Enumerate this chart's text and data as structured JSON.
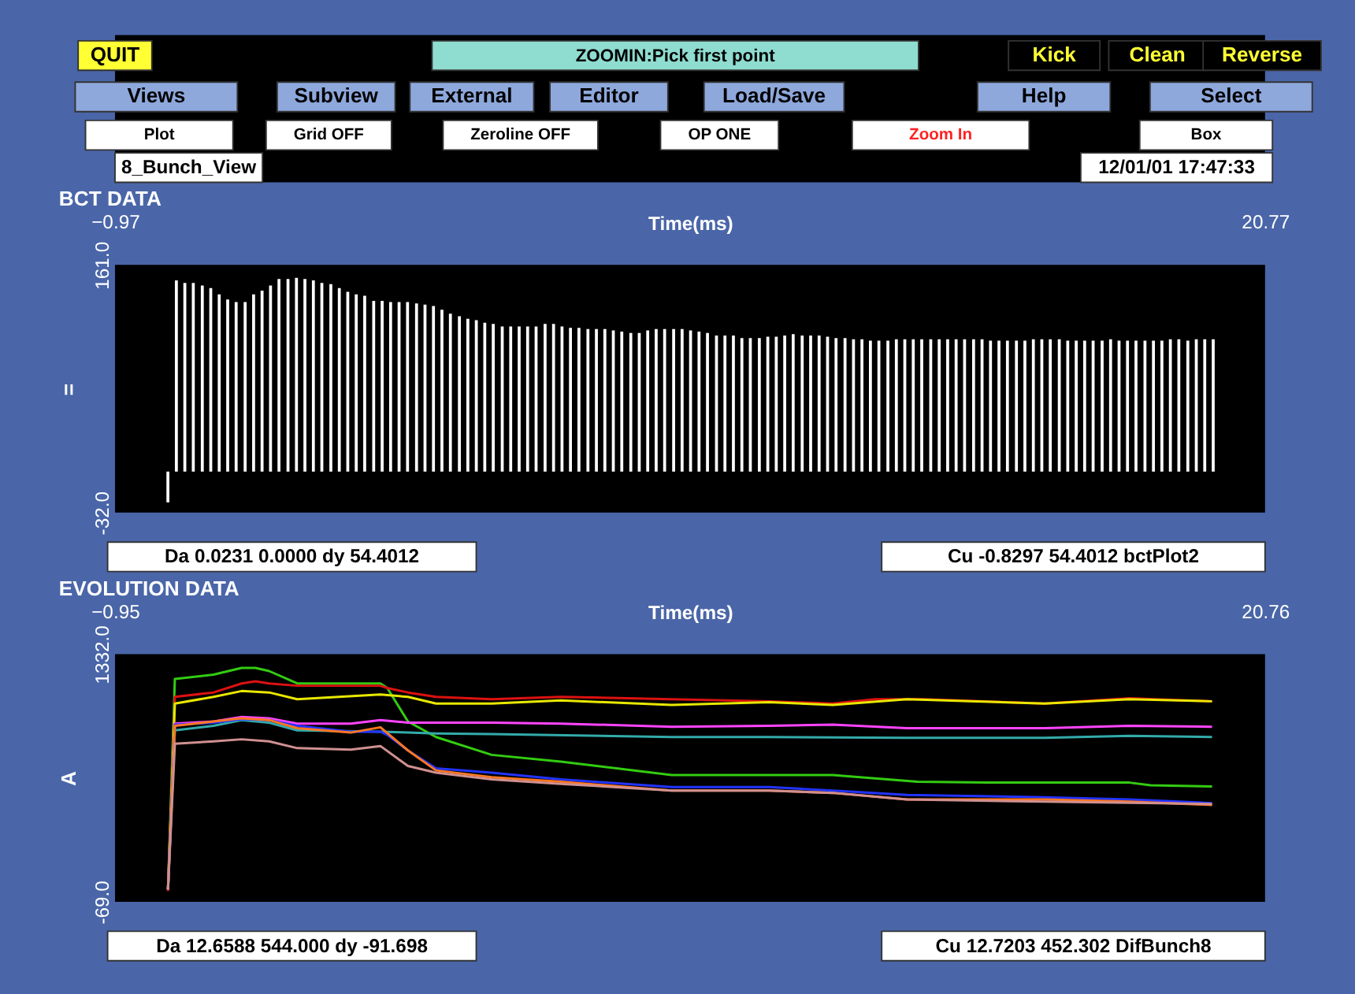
{
  "chart_data": [
    {
      "type": "bar",
      "title": "BCT DATA",
      "xlabel": "Time(ms)",
      "ylabel": "=",
      "xlim": [
        -0.97,
        20.77
      ],
      "xticks": [
        -0.97,
        20.77
      ],
      "ylim": [
        -32,
        161
      ],
      "yticks": [
        {
          "value": -32,
          "label": "-32.0"
        },
        {
          "value": 161,
          "label": "161.0"
        }
      ],
      "grid": false,
      "legend": false,
      "series": [
        {
          "color": "#ffffff",
          "x": [
            0.03,
            0.19,
            0.35,
            0.51,
            0.68,
            0.84,
            1.0,
            1.16,
            1.32,
            1.49,
            1.65,
            1.81,
            1.97,
            2.13,
            2.3,
            2.46,
            2.62,
            2.78,
            2.94,
            3.11,
            3.27,
            3.43,
            3.59,
            3.75,
            3.92,
            4.08,
            4.24,
            4.4,
            4.56,
            4.73,
            4.89,
            5.05,
            5.21,
            5.37,
            5.54,
            5.7,
            5.86,
            6.02,
            6.18,
            6.35,
            6.51,
            6.67,
            6.83,
            6.99,
            7.16,
            7.32,
            7.48,
            7.64,
            7.8,
            7.97,
            8.13,
            8.29,
            8.45,
            8.61,
            8.78,
            8.94,
            9.1,
            9.26,
            9.42,
            9.59,
            9.75,
            9.91,
            10.07,
            10.23,
            10.4,
            10.56,
            10.72,
            10.88,
            11.04,
            11.21,
            11.37,
            11.53,
            11.69,
            11.85,
            12.02,
            12.18,
            12.34,
            12.5,
            12.66,
            12.83,
            12.99,
            13.15,
            13.31,
            13.47,
            13.64,
            13.8,
            13.96,
            14.12,
            14.28,
            14.45,
            14.61,
            14.77,
            14.93,
            15.09,
            15.26,
            15.42,
            15.58,
            15.74,
            15.9,
            16.07,
            16.23,
            16.39,
            16.55,
            16.71,
            16.88,
            17.04,
            17.2,
            17.36,
            17.52,
            17.69,
            17.85,
            18.01,
            18.17,
            18.33,
            18.5,
            18.66,
            18.82,
            18.98,
            19.14,
            19.31,
            19.47,
            19.63,
            19.79
          ],
          "values": [
            -24,
            149,
            147,
            147,
            145,
            143,
            138,
            134,
            132,
            132,
            138,
            141,
            145,
            150,
            150,
            151,
            150,
            149,
            147,
            146,
            143,
            140,
            138,
            137,
            133,
            133,
            132,
            132,
            132,
            131,
            130,
            129,
            126,
            123,
            121,
            119,
            118,
            116,
            115,
            113,
            113,
            113,
            113,
            113,
            115,
            115,
            113,
            112,
            112,
            111,
            111,
            111,
            110,
            109,
            108,
            108,
            110,
            111,
            111,
            111,
            111,
            110,
            109,
            108,
            106,
            106,
            106,
            104,
            104,
            104,
            105,
            105,
            106,
            107,
            106,
            106,
            106,
            105,
            104,
            104,
            103,
            103,
            102,
            102,
            102,
            103,
            103,
            103,
            103,
            103,
            103,
            103,
            103,
            103,
            103,
            103,
            102,
            102,
            102,
            102,
            102,
            103,
            103,
            103,
            103,
            102,
            102,
            102,
            102,
            102,
            103,
            102,
            102,
            102,
            102,
            102,
            102,
            103,
            103,
            102,
            103,
            103,
            103
          ]
        }
      ],
      "annotations": [
        "QUIT",
        "ZOOMIN:Pick first point",
        "Kick",
        "Clean",
        "Reverse",
        "Views",
        "Subview",
        "External",
        "Editor",
        "Load/Save",
        "Help",
        "Select",
        "Plot",
        "Grid OFF",
        "Zeroline OFF",
        "OP ONE",
        "Zoom In",
        "Box",
        "8_Bunch_View",
        "12/01/01 17:47:33",
        "Da  0.0231  0.0000 dy 54.4012",
        "Cu -0.8297 54.4012 bctPlot2"
      ]
    },
    {
      "type": "line",
      "title": "EVOLUTION DATA",
      "xlabel": "Time(ms)",
      "ylabel": "A",
      "xlim": [
        -0.95,
        20.76
      ],
      "xticks": [
        -0.95,
        20.76
      ],
      "ylim": [
        -69,
        1332
      ],
      "yticks": [
        {
          "value": -69,
          "label": "-69.0"
        },
        {
          "value": 1332,
          "label": "1332.0"
        }
      ],
      "grid": false,
      "legend": false,
      "marker": "none",
      "line_style": "solid",
      "series": [
        {
          "color": "#33cc11",
          "x": [
            0.05,
            0.18,
            0.91,
            1.44,
            1.7,
            1.96,
            2.49,
            4.06,
            4.19,
            4.58,
            5.11,
            6.16,
            7.47,
            9.56,
            11.4,
            12.6,
            13.3,
            14.2,
            15.5,
            18.2,
            18.6,
            19.76
          ],
          "values": [
            5,
            1191,
            1216,
            1254,
            1254,
            1236,
            1166,
            1166,
            1140,
            951,
            863,
            762,
            724,
            648,
            648,
            648,
            631,
            610,
            605,
            605,
            590,
            583
          ]
        },
        {
          "color": "#dd1111",
          "x": [
            0.05,
            0.18,
            0.91,
            1.44,
            1.7,
            1.96,
            2.49,
            4.06,
            4.19,
            4.58,
            5.11,
            6.16,
            7.47,
            9.56,
            11.4,
            12.6,
            13.4,
            14.3,
            16.6,
            18.2,
            19.76
          ],
          "values": [
            -8,
            1090,
            1115,
            1166,
            1178,
            1166,
            1153,
            1153,
            1140,
            1115,
            1090,
            1077,
            1090,
            1077,
            1065,
            1052,
            1077,
            1077,
            1052,
            1082,
            1065
          ]
        },
        {
          "color": "#e8e800",
          "x": [
            0.05,
            0.18,
            0.91,
            1.44,
            1.96,
            2.49,
            4.06,
            4.58,
            5.11,
            6.16,
            7.47,
            9.56,
            11.4,
            12.6,
            14.0,
            16.6,
            18.2,
            19.76
          ],
          "values": [
            0,
            1052,
            1090,
            1123,
            1115,
            1077,
            1103,
            1090,
            1052,
            1052,
            1070,
            1044,
            1060,
            1044,
            1077,
            1052,
            1077,
            1065
          ]
        },
        {
          "color": "#ff44ff",
          "x": [
            0.05,
            0.18,
            0.91,
            1.44,
            1.96,
            2.49,
            3.5,
            4.06,
            4.58,
            6.16,
            7.47,
            9.56,
            11.4,
            12.6,
            14.0,
            16.6,
            18.2,
            19.76
          ],
          "values": [
            0,
            939,
            951,
            976,
            969,
            939,
            939,
            959,
            944,
            944,
            939,
            921,
            926,
            933,
            913,
            913,
            926,
            921
          ]
        },
        {
          "color": "#33aaaa",
          "x": [
            0.05,
            0.18,
            0.91,
            1.44,
            1.96,
            2.49,
            4.06,
            4.58,
            5.11,
            6.16,
            9.56,
            11.4,
            14.0,
            16.6,
            18.2,
            19.76
          ],
          "values": [
            0,
            901,
            926,
            959,
            944,
            901,
            893,
            888,
            883,
            880,
            863,
            863,
            858,
            858,
            870,
            863
          ]
        },
        {
          "color": "#2233ff",
          "x": [
            0.05,
            0.18,
            0.91,
            1.44,
            1.96,
            2.49,
            3.5,
            4.06,
            4.19,
            4.58,
            5.11,
            6.16,
            7.47,
            9.56,
            11.4,
            12.6,
            14.0,
            16.6,
            18.2,
            19.76
          ],
          "values": [
            0,
            933,
            944,
            964,
            959,
            926,
            893,
            893,
            875,
            787,
            686,
            661,
            623,
            580,
            580,
            560,
            535,
            522,
            510,
            489
          ]
        },
        {
          "color": "#ff7722",
          "x": [
            0.05,
            0.18,
            0.91,
            1.44,
            1.96,
            2.49,
            3.5,
            4.06,
            4.58,
            5.11,
            6.16,
            7.47,
            9.56,
            11.4,
            12.6,
            14.0,
            16.6,
            18.2,
            19.76
          ],
          "values": [
            0,
            926,
            951,
            969,
            959,
            913,
            888,
            918,
            787,
            674,
            636,
            610,
            560,
            560,
            547,
            510,
            510,
            497,
            479
          ]
        },
        {
          "color": "#d09090",
          "x": [
            0.05,
            0.18,
            0.91,
            1.44,
            1.96,
            2.49,
            3.5,
            4.06,
            4.58,
            5.11,
            6.16,
            7.47,
            9.56,
            11.4,
            12.6,
            14.0,
            16.6,
            19.76
          ],
          "values": [
            0,
            825,
            838,
            850,
            838,
            800,
            792,
            812,
            699,
            661,
            623,
            598,
            560,
            560,
            547,
            510,
            497,
            484
          ]
        }
      ],
      "annotations": [
        "Da 12.6588 544.000 dy -91.698",
        "Cu 12.7203 452.302 DifBunch8"
      ]
    }
  ]
}
